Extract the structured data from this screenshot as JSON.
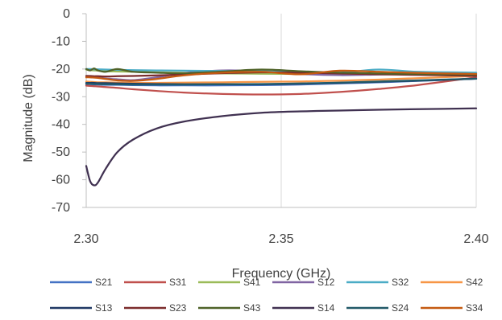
{
  "chart_data": {
    "type": "line",
    "title": "",
    "xlabel": "Frequency (GHz)",
    "ylabel": "Magnitude (dB)",
    "xlim": [
      2.3,
      2.4
    ],
    "ylim": [
      -70,
      0
    ],
    "xticks": [
      "2.30",
      "2.35",
      "2.40"
    ],
    "yticks": [
      "0",
      "-10",
      "-20",
      "-30",
      "-40",
      "-50",
      "-60",
      "-70"
    ],
    "grid": "vertical",
    "legend": "bottom",
    "x": [
      2.3,
      2.301,
      2.302,
      2.303,
      2.305,
      2.308,
      2.312,
      2.318,
      2.325,
      2.335,
      2.345,
      2.355,
      2.365,
      2.375,
      2.385,
      2.4
    ],
    "series": [
      {
        "name": "S21",
        "color": "#4472C4",
        "values": [
          -25.5,
          -25.5,
          -25.6,
          -25.6,
          -25.7,
          -25.7,
          -25.8,
          -25.9,
          -25.9,
          -25.9,
          -25.8,
          -25.6,
          -25.2,
          -24.8,
          -24.3,
          -23.5
        ]
      },
      {
        "name": "S31",
        "color": "#C0504D",
        "values": [
          -26.0,
          -26.1,
          -26.2,
          -26.3,
          -26.5,
          -26.8,
          -27.3,
          -27.9,
          -28.5,
          -29.0,
          -29.2,
          -29.0,
          -28.3,
          -27.2,
          -25.8,
          -23.0
        ]
      },
      {
        "name": "S41",
        "color": "#9BBB59",
        "values": [
          -20.2,
          -20.4,
          -20.5,
          -20.6,
          -20.8,
          -20.9,
          -21.0,
          -21.2,
          -21.4,
          -21.6,
          -21.7,
          -21.8,
          -21.8,
          -21.7,
          -21.6,
          -21.5
        ]
      },
      {
        "name": "S12",
        "color": "#8064A2",
        "values": [
          -22.5,
          -22.6,
          -22.8,
          -23.0,
          -23.4,
          -23.7,
          -24.0,
          -23.0,
          -21.5,
          -20.5,
          -20.8,
          -21.8,
          -22.2,
          -22.0,
          -21.8,
          -21.5
        ]
      },
      {
        "name": "S32",
        "color": "#4BACC6",
        "values": [
          -20.0,
          -20.0,
          -20.1,
          -20.1,
          -20.2,
          -20.3,
          -20.4,
          -20.5,
          -20.6,
          -20.7,
          -20.8,
          -21.0,
          -21.3,
          -20.2,
          -21.0,
          -21.3
        ]
      },
      {
        "name": "S42",
        "color": "#F79646",
        "values": [
          -24.5,
          -24.6,
          -24.7,
          -24.8,
          -24.8,
          -24.9,
          -25.0,
          -25.0,
          -24.9,
          -24.8,
          -24.6,
          -24.5,
          -24.2,
          -23.8,
          -23.3,
          -22.5
        ]
      },
      {
        "name": "S13",
        "color": "#1F3864",
        "values": [
          -25.0,
          -25.0,
          -25.0,
          -25.1,
          -25.1,
          -25.2,
          -25.3,
          -25.4,
          -25.5,
          -25.5,
          -25.5,
          -25.3,
          -25.0,
          -24.6,
          -24.2,
          -23.5
        ]
      },
      {
        "name": "S23",
        "color": "#7B2C2C",
        "values": [
          -22.5,
          -22.5,
          -22.6,
          -22.6,
          -22.7,
          -22.6,
          -22.5,
          -22.3,
          -22.0,
          -21.5,
          -21.2,
          -21.3,
          -21.6,
          -21.9,
          -22.1,
          -22.5
        ]
      },
      {
        "name": "S43",
        "color": "#4F6228",
        "values": [
          -20.0,
          -20.5,
          -19.8,
          -20.5,
          -21.0,
          -20.0,
          -21.0,
          -21.3,
          -21.5,
          -20.9,
          -20.2,
          -20.8,
          -21.3,
          -21.6,
          -21.8,
          -22.0
        ]
      },
      {
        "name": "S14",
        "color": "#403151",
        "values": [
          -55.0,
          -60.5,
          -62.0,
          -61.0,
          -56.0,
          -50.0,
          -45.5,
          -41.5,
          -39.0,
          -37.0,
          -35.8,
          -35.3,
          -35.0,
          -34.7,
          -34.5,
          -34.2
        ]
      },
      {
        "name": "S24",
        "color": "#215968",
        "values": [
          -25.3,
          -25.3,
          -25.4,
          -25.4,
          -25.5,
          -25.5,
          -25.6,
          -25.6,
          -25.6,
          -25.5,
          -25.4,
          -25.2,
          -24.9,
          -24.5,
          -24.1,
          -23.5
        ]
      },
      {
        "name": "S34",
        "color": "#C55A11",
        "values": [
          -23.0,
          -23.0,
          -23.1,
          -23.2,
          -23.6,
          -24.1,
          -24.3,
          -23.6,
          -22.3,
          -21.3,
          -21.0,
          -21.9,
          -20.6,
          -21.0,
          -21.4,
          -21.8
        ]
      }
    ]
  }
}
